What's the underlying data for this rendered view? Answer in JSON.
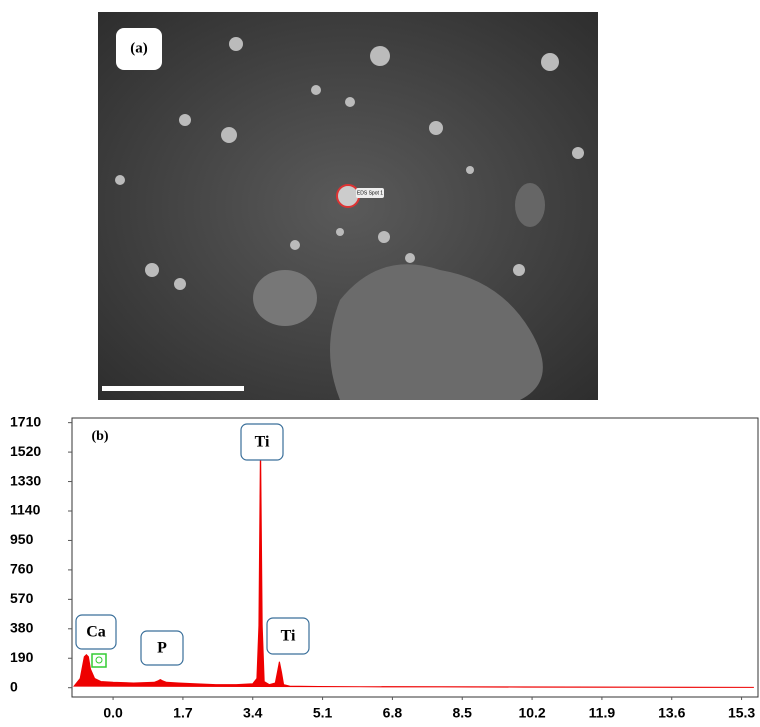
{
  "chart_data": {
    "type": "area",
    "panel_labels": [
      "(a)",
      "(b)"
    ],
    "spot_label": "EDS Spot 1",
    "x": [
      -0.95,
      -0.8,
      -0.7,
      -0.65,
      -0.6,
      -0.55,
      -0.45,
      -0.3,
      0,
      0.5,
      1.0,
      1.1,
      1.15,
      1.2,
      1.3,
      1.6,
      2.0,
      2.5,
      3.0,
      3.4,
      3.5,
      3.55,
      3.59,
      3.63,
      3.68,
      3.8,
      3.95,
      4.0,
      4.05,
      4.1,
      4.15,
      4.3,
      5,
      6,
      8,
      10,
      12,
      14,
      15.6
    ],
    "values": [
      10,
      60,
      200,
      213,
      200,
      120,
      60,
      40,
      35,
      30,
      35,
      45,
      52,
      45,
      35,
      30,
      25,
      20,
      20,
      25,
      60,
      400,
      1600,
      400,
      40,
      20,
      30,
      100,
      168,
      100,
      20,
      10,
      8,
      6,
      5,
      4,
      3,
      2,
      2
    ],
    "color": "#ee0000",
    "xlim": [
      -1.0,
      15.7
    ],
    "xticks": [
      {
        "value": 0,
        "label": "0.0"
      },
      1.7,
      3.4,
      5.1,
      6.8,
      8.5,
      10.2,
      11.9,
      13.6,
      15.3
    ],
    "ylim": [
      -60,
      1740
    ],
    "yticks": [
      0,
      190,
      380,
      570,
      760,
      950,
      1140,
      1330,
      1520,
      1710
    ],
    "annotations": [
      "Ca",
      "P",
      "Ti",
      "Ti"
    ]
  }
}
